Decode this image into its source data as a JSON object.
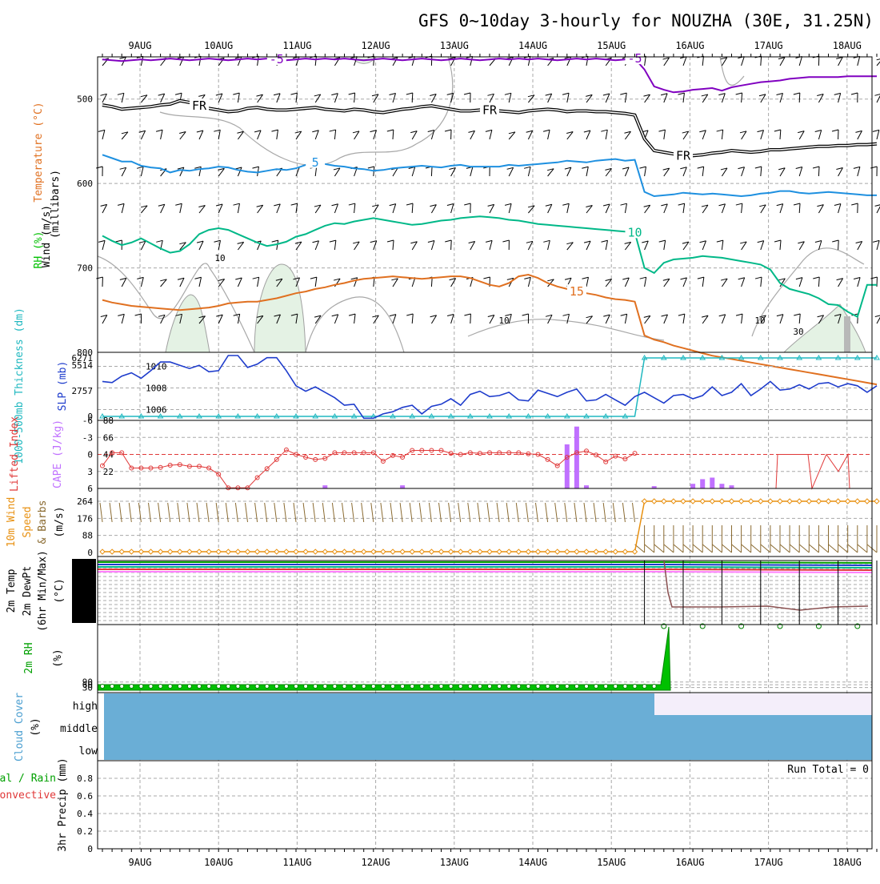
{
  "title": "GFS 0~10day 3-hourly for NOUZHA (30E, 31.25N)",
  "dates": [
    "9AUG",
    "10AUG",
    "11AUG",
    "12AUG",
    "13AUG",
    "14AUG",
    "15AUG",
    "16AUG",
    "17AUG",
    "18AUG"
  ],
  "colors": {
    "purple": "#8000c0",
    "black": "#000000",
    "blue": "#1e90e0",
    "green": "#00b888",
    "orange": "#e07020",
    "slp": "#1e3ccc",
    "cyan": "#20b8c0",
    "red": "#e03838",
    "cape": "#c070ff",
    "windspeed": "#e89010",
    "rh": "#00a000",
    "cloud": "#6aaed6",
    "cloud_high": "#f4eefa"
  },
  "panels": {
    "upper": {
      "ylabel_wind": "Wind (m/s)",
      "ylabel_temp": "Temperature (°C)",
      "ylabel_rh": "RH (%)",
      "ylabel_units": "(millibars)",
      "yticks": [
        "500",
        "600",
        "700",
        "800"
      ]
    },
    "slp": {
      "ylabel_thick": "1000-500mb Thickness (dm)",
      "ylabel_slp": "SLP (mb)",
      "left_ticks": [
        "6271",
        "5514",
        "2757",
        "0"
      ],
      "right_ticks": [
        "1010",
        "1008",
        "1006"
      ]
    },
    "cape": {
      "ylabel_li": "Lifted Index",
      "ylabel_cape": "CAPE (J/kg)",
      "left_ticks": [
        "-6",
        "-3",
        "0",
        "3",
        "6"
      ],
      "right_ticks": [
        "88",
        "66",
        "44",
        "22"
      ]
    },
    "wind10": {
      "ylabel_a": "10m Wind",
      "ylabel_b": "Speed",
      "ylabel_c": "& Barbs",
      "ylabel_units": "(m/s)",
      "yticks": [
        "264",
        "176",
        "88",
        "0"
      ]
    },
    "temp2m": {
      "ylabel_a": "2m Temp",
      "ylabel_b": "2m DewPt",
      "ylabel_c": "(6hr Min/Max)",
      "ylabel_units": "(°C)"
    },
    "rh2m": {
      "ylabel_a": "2m RH",
      "ylabel_units": "(%)",
      "yticks": [
        "90",
        "60",
        "30"
      ]
    },
    "cloud": {
      "ylabel_a": "Cloud Cover",
      "ylabel_units": "(%)",
      "levels": [
        "high",
        "middle",
        "low"
      ]
    },
    "precip": {
      "ylabel_a": "Total / Rain",
      "ylabel_b": "Convective",
      "ylabel_c": "3hr Precip (mm)",
      "yticks": [
        "0.8",
        "0.6",
        "0.4",
        "0.2",
        "0"
      ],
      "run_total": "Run Total = 0"
    }
  },
  "contour_labels": {
    "purple": "-5",
    "black": "FR",
    "blue": "5",
    "green": "10",
    "orange": "15",
    "rh_10": "10",
    "rh_30": "30"
  },
  "chart_data": {
    "type": "line",
    "x_start": "8AUG 15Z",
    "x_step_hours": 3,
    "isotherms": [
      {
        "label": "-5",
        "pressure_mb": [
          453,
          454,
          455,
          454,
          453,
          454,
          453,
          452,
          453,
          454,
          453,
          452,
          453,
          454,
          453,
          452,
          453,
          452,
          453,
          454,
          453,
          452,
          453,
          452,
          453,
          452,
          453,
          454,
          453,
          452,
          453,
          454,
          453,
          452,
          453,
          454,
          453,
          452,
          453,
          454,
          453,
          452,
          453,
          452,
          453,
          452,
          453,
          454,
          453,
          452,
          453,
          452,
          453,
          454,
          453,
          452,
          465,
          485,
          489,
          492,
          491,
          489,
          488,
          487,
          490,
          486,
          484,
          482,
          480,
          479,
          478,
          476,
          475,
          474,
          474,
          474,
          474,
          473,
          473,
          473,
          473
        ]
      },
      {
        "label": "FR",
        "pressure_mb": [
          507,
          509,
          512,
          511,
          510,
          509,
          507,
          506,
          502,
          504,
          508,
          511,
          513,
          515,
          514,
          511,
          510,
          512,
          513,
          513,
          512,
          511,
          510,
          512,
          513,
          514,
          512,
          513,
          515,
          516,
          514,
          512,
          511,
          509,
          508,
          510,
          512,
          514,
          514,
          513,
          513,
          514,
          515,
          516,
          514,
          513,
          512,
          513,
          515,
          514,
          514,
          515,
          515,
          516,
          517,
          519,
          547,
          561,
          563,
          565,
          567,
          567,
          566,
          564,
          563,
          561,
          562,
          563,
          562,
          560,
          560,
          559,
          558,
          557,
          556,
          556,
          555,
          555,
          554,
          554,
          553
        ]
      },
      {
        "label": "5",
        "pressure_mb": [
          566,
          570,
          574,
          574,
          579,
          581,
          582,
          587,
          584,
          585,
          583,
          582,
          580,
          581,
          584,
          586,
          587,
          585,
          583,
          584,
          582,
          578,
          575,
          577,
          579,
          580,
          582,
          583,
          585,
          584,
          582,
          581,
          580,
          579,
          580,
          581,
          579,
          578,
          580,
          580,
          580,
          580,
          578,
          579,
          578,
          577,
          576,
          575,
          573,
          574,
          575,
          573,
          572,
          571,
          573,
          572,
          610,
          615,
          614,
          613,
          611,
          612,
          613,
          612,
          613,
          614,
          615,
          614,
          612,
          611,
          609,
          609,
          611,
          612,
          611,
          610,
          611,
          612,
          613,
          614,
          614
        ]
      },
      {
        "label": "10",
        "pressure_mb": [
          662,
          668,
          673,
          670,
          665,
          671,
          677,
          682,
          680,
          672,
          660,
          655,
          653,
          655,
          660,
          665,
          670,
          674,
          672,
          669,
          663,
          660,
          655,
          650,
          647,
          648,
          645,
          643,
          641,
          643,
          645,
          647,
          649,
          648,
          646,
          644,
          643,
          641,
          640,
          639,
          640,
          641,
          643,
          644,
          646,
          648,
          649,
          650,
          651,
          652,
          653,
          654,
          655,
          656,
          657,
          658,
          700,
          706,
          694,
          690,
          689,
          688,
          686,
          687,
          688,
          690,
          692,
          694,
          696,
          702,
          718,
          725,
          728,
          731,
          736,
          743,
          744,
          752,
          758,
          720,
          720
        ]
      },
      {
        "label": "15",
        "pressure_mb": [
          738,
          741,
          743,
          745,
          746,
          747,
          748,
          749,
          750,
          749,
          748,
          747,
          745,
          742,
          741,
          740,
          740,
          738,
          736,
          733,
          730,
          728,
          725,
          723,
          720,
          718,
          715,
          713,
          712,
          711,
          710,
          711,
          712,
          713,
          712,
          711,
          710,
          710,
          712,
          716,
          720,
          722,
          718,
          710,
          708,
          712,
          718,
          722,
          725,
          728,
          730,
          732,
          735,
          737,
          738,
          740,
          780,
          785,
          788,
          792,
          795,
          798,
          801,
          804,
          806,
          808,
          810,
          812,
          814,
          816,
          818,
          820,
          822,
          824,
          826,
          828,
          830,
          832,
          834,
          836,
          838
        ]
      }
    ],
    "slp": {
      "name": "SLP (mb)",
      "values": [
        1008.6,
        1008.5,
        1009.1,
        1009.4,
        1008.9,
        1009.6,
        1010.4,
        1010.4,
        1010.1,
        1009.8,
        1010.1,
        1009.5,
        1009.6,
        1011.0,
        1011.0,
        1009.9,
        1010.2,
        1010.8,
        1010.8,
        1009.6,
        1008.2,
        1007.7,
        1008.1,
        1007.6,
        1007.1,
        1006.4,
        1006.5,
        1005.2,
        1005.2,
        1005.6,
        1005.8,
        1006.2,
        1006.4,
        1005.6,
        1006.3,
        1006.5,
        1007.0,
        1006.4,
        1007.4,
        1007.7,
        1007.2,
        1007.3,
        1007.6,
        1006.9,
        1006.8,
        1007.8,
        1007.5,
        1007.2,
        1007.6,
        1007.9,
        1006.8,
        1006.9,
        1007.4,
        1006.9,
        1006.4,
        1007.2,
        1007.6,
        1007.1,
        1006.6,
        1007.3,
        1007.4,
        1007.0,
        1007.3,
        1008.1,
        1007.3,
        1007.6,
        1008.4,
        1007.3,
        1007.9,
        1008.6,
        1007.8,
        1007.9,
        1008.3,
        1007.9,
        1008.4,
        1008.5,
        1008.1,
        1008.4,
        1008.2,
        1007.6,
        1008.2
      ]
    },
    "thickness_dm": {
      "values_low": 0,
      "values_high": 6271,
      "jump_index": 56
    },
    "lifted_index": [
      2,
      -0.3,
      -0.3,
      2.4,
      2.4,
      2.4,
      2.3,
      1.9,
      1.8,
      2.1,
      2.1,
      2.4,
      3.5,
      5.9,
      5.9,
      5.9,
      4.1,
      2.5,
      0.9,
      -0.8,
      0,
      0.5,
      0.9,
      0.7,
      -0.3,
      -0.3,
      -0.3,
      -0.3,
      -0.3,
      1.2,
      0.2,
      0.5,
      -0.7,
      -0.7,
      -0.7,
      -0.7,
      -0.2,
      0,
      -0.3,
      -0.2,
      -0.3,
      -0.3,
      -0.3,
      -0.3,
      -0.1,
      0,
      0.9,
      2,
      0.5,
      -0.3,
      -0.6,
      0.1,
      1.3,
      0.3,
      0.8,
      -0.2,
      -0.5,
      -0.4,
      -0.9,
      -1.1,
      -1.1,
      -1.1,
      -0.9,
      -1.5,
      -1.5,
      -1.5,
      -1.5,
      -1.5,
      -1.5,
      -1.5,
      -1.5,
      -1.5,
      -1.5,
      -1.5,
      -1.5,
      -1.5,
      -1.5,
      -1.5,
      -1.5,
      -1.5,
      -1.5
    ],
    "cape": [
      0,
      0,
      0,
      0,
      0,
      0,
      0,
      0,
      0,
      0,
      0,
      0,
      0,
      0,
      0,
      0,
      0,
      0,
      0,
      0,
      0,
      0,
      0,
      4,
      0,
      0,
      0,
      0,
      0,
      0,
      0,
      4,
      0,
      0,
      0,
      0,
      0,
      0,
      0,
      0,
      0,
      0,
      0,
      0,
      0,
      0,
      0,
      0,
      57,
      80,
      4,
      0,
      0,
      0,
      0,
      0,
      0,
      3,
      0,
      0,
      0,
      6,
      12,
      14,
      6,
      4,
      0,
      0,
      0,
      0,
      0,
      0,
      0,
      0,
      0,
      0,
      0,
      0,
      0,
      0,
      0
    ],
    "wind10_ms": {
      "values_low": 4,
      "values_high": 264,
      "jump_index": 56
    },
    "rh2m": {
      "values_low": 30,
      "values_high": 700,
      "jump_index": 56
    },
    "precip_mm": {
      "values": [
        0
      ]
    }
  }
}
